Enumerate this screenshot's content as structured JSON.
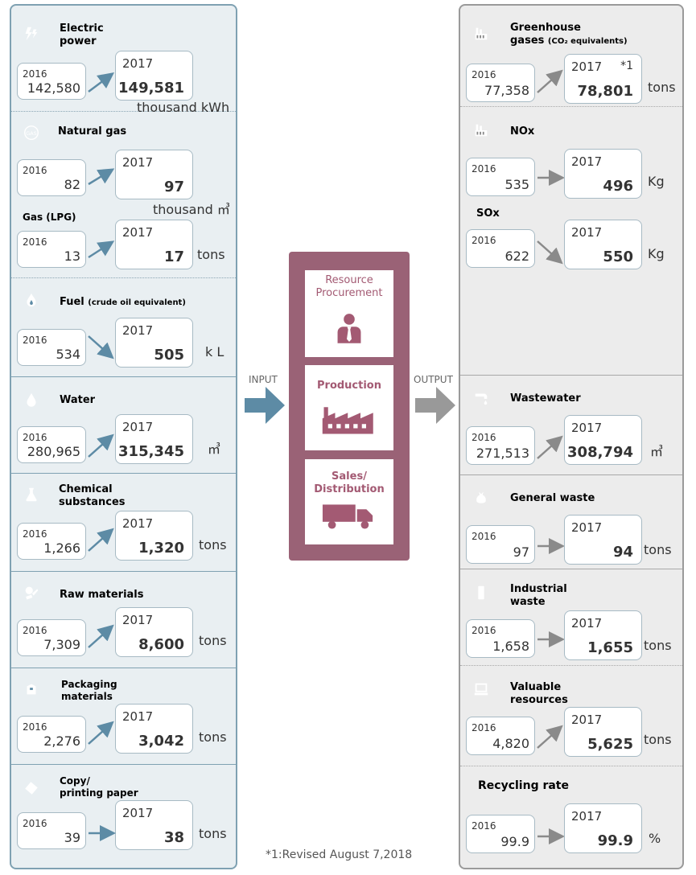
{
  "input": {
    "label": "INPUT",
    "items": [
      {
        "title": "Electric\npower",
        "icon": "lightning-icon",
        "y2016": "2016",
        "v2016": "142,580",
        "y2017": "2017",
        "v2017": "149,581",
        "unit": "thousand kWh"
      },
      {
        "title": "Natural gas",
        "icon": "gas-icon",
        "y2016": "2016",
        "v2016": "82",
        "y2017": "2017",
        "v2017": "97",
        "unit": "thousand ㎥"
      },
      {
        "title": "Gas (LPG)",
        "y2016": "2016",
        "v2016": "13",
        "y2017": "2017",
        "v2017": "17",
        "unit": "tons"
      },
      {
        "title": "Fuel",
        "note": "(crude oil equivalent)",
        "icon": "flame-icon",
        "y2016": "2016",
        "v2016": "534",
        "y2017": "2017",
        "v2017": "505",
        "unit": "k L"
      },
      {
        "title": "Water",
        "icon": "water-drop-icon",
        "y2016": "2016",
        "v2016": "280,965",
        "y2017": "2017",
        "v2017": "315,345",
        "unit": "㎥"
      },
      {
        "title": "Chemical\nsubstances",
        "icon": "flask-icon",
        "y2016": "2016",
        "v2016": "1,266",
        "y2017": "2017",
        "v2017": "1,320",
        "unit": "tons"
      },
      {
        "title": "Raw materials",
        "icon": "raw-materials-icon",
        "y2016": "2016",
        "v2016": "7,309",
        "y2017": "2017",
        "v2017": "8,600",
        "unit": "tons"
      },
      {
        "title": "Packaging\nmaterials",
        "icon": "package-icon",
        "y2016": "2016",
        "v2016": "2,276",
        "y2017": "2017",
        "v2017": "3,042",
        "unit": "tons"
      },
      {
        "title": "Copy/\nprinting paper",
        "icon": "paper-icon",
        "y2016": "2016",
        "v2016": "39",
        "y2017": "2017",
        "v2017": "38",
        "unit": "tons"
      }
    ]
  },
  "process": {
    "stages": [
      {
        "title": "Resource\nProcurement",
        "icon": "person-icon"
      },
      {
        "title": "Production",
        "icon": "factory-icon"
      },
      {
        "title": "Sales/\nDistribution",
        "icon": "truck-icon"
      }
    ]
  },
  "output": {
    "label": "OUTPUT",
    "items": [
      {
        "title": "Greenhouse\ngases",
        "note": "(CO₂ equivalents)",
        "icon": "factory-emission-icon",
        "y2016": "2016",
        "v2016": "77,358",
        "y2017": "2017",
        "mark": "*1",
        "v2017": "78,801",
        "unit": "tons"
      },
      {
        "title": "NOx",
        "icon": "factory-emission-icon",
        "y2016": "2016",
        "v2016": "535",
        "y2017": "2017",
        "v2017": "496",
        "unit": "Kg"
      },
      {
        "title": "SOx",
        "y2016": "2016",
        "v2016": "622",
        "y2017": "2017",
        "v2017": "550",
        "unit": "Kg"
      },
      {
        "title": "Wastewater",
        "icon": "faucet-icon",
        "y2016": "2016",
        "v2016": "271,513",
        "y2017": "2017",
        "v2017": "308,794",
        "unit": "㎥"
      },
      {
        "title": "General waste",
        "icon": "garbage-bag-icon",
        "y2016": "2016",
        "v2016": "97",
        "y2017": "2017",
        "v2017": "94",
        "unit": "tons"
      },
      {
        "title": "Industrial\nwaste",
        "icon": "drum-icon",
        "y2016": "2016",
        "v2016": "1,658",
        "y2017": "2017",
        "v2017": "1,655",
        "unit": "tons"
      },
      {
        "title": "Valuable\nresources",
        "icon": "computer-icon",
        "y2016": "2016",
        "v2016": "4,820",
        "y2017": "2017",
        "v2017": "5,625",
        "unit": "tons"
      },
      {
        "title": "Recycling rate",
        "y2016": "2016",
        "v2016": "99.9",
        "y2017": "2017",
        "v2017": "99.9",
        "unit": "%"
      }
    ]
  },
  "footnote": "*1:Revised August 7,2018"
}
